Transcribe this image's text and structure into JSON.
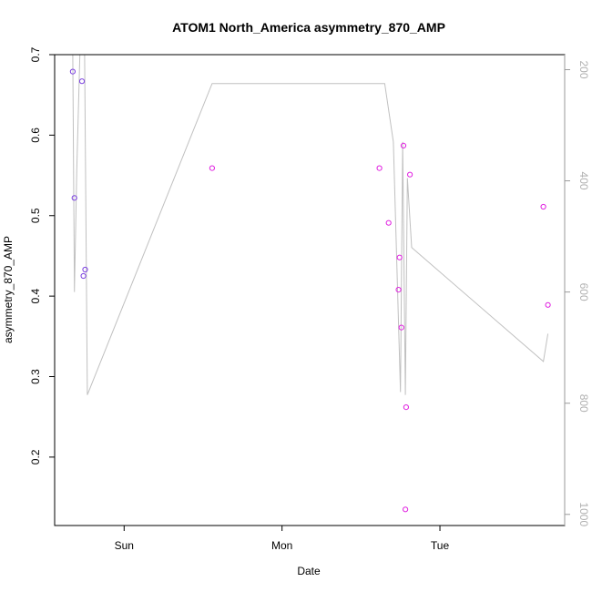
{
  "chart_data": {
    "type": "scatter",
    "title": "ATOM1 North_America asymmetry_870_AMP",
    "xlabel": "Date",
    "ylabel": "asymmetry_870_AMP",
    "x_unit": "days (0 = Sun 00:00)",
    "xlim": [
      -0.44,
      2.79
    ],
    "ylim": [
      0.115,
      0.7
    ],
    "x_ticks": [
      {
        "value": 0,
        "label": "Sun"
      },
      {
        "value": 1,
        "label": "Mon"
      },
      {
        "value": 2,
        "label": "Tue"
      }
    ],
    "y_ticks": [
      0.2,
      0.3,
      0.4,
      0.5,
      0.6,
      0.7
    ],
    "y2_ticks": [
      200,
      400,
      600,
      800,
      1000
    ],
    "y2lim": [
      1020,
      173
    ],
    "grid": false,
    "series": [
      {
        "values": [
          {
            "x": -0.325,
            "y": 0.679,
            "color": "#7b3fe0"
          },
          {
            "x": -0.315,
            "y": 0.522,
            "color": "#7b3fe0"
          },
          {
            "x": -0.267,
            "y": 0.667,
            "color": "#7b3fe0"
          },
          {
            "x": -0.258,
            "y": 0.425,
            "color": "#7b3fe0"
          },
          {
            "x": -0.247,
            "y": 0.433,
            "color": "#7b3fe0"
          },
          {
            "x": 0.557,
            "y": 0.559,
            "color": "#e020e0"
          },
          {
            "x": 1.617,
            "y": 0.559,
            "color": "#e020e0"
          },
          {
            "x": 1.675,
            "y": 0.491,
            "color": "#e020e0"
          },
          {
            "x": 1.738,
            "y": 0.408,
            "color": "#e020e0"
          },
          {
            "x": 1.744,
            "y": 0.448,
            "color": "#e020e0"
          },
          {
            "x": 1.756,
            "y": 0.361,
            "color": "#e020e0"
          },
          {
            "x": 1.769,
            "y": 0.587,
            "color": "#e020e0"
          },
          {
            "x": 1.781,
            "y": 0.135,
            "color": "#e020e0"
          },
          {
            "x": 1.786,
            "y": 0.262,
            "color": "#e020e0"
          },
          {
            "x": 1.81,
            "y": 0.551,
            "color": "#e020e0"
          },
          {
            "x": 2.655,
            "y": 0.511,
            "color": "#e020e0"
          },
          {
            "x": 2.684,
            "y": 0.389,
            "color": "#e020e0"
          }
        ]
      },
      {
        "axis": "right",
        "color": "#c0c0c0",
        "values": [
          {
            "x": -0.325,
            "y": 173
          },
          {
            "x": -0.315,
            "y": 600
          },
          {
            "x": -0.3,
            "y": 380
          },
          {
            "x": -0.28,
            "y": 173
          },
          {
            "x": -0.25,
            "y": 173
          },
          {
            "x": -0.233,
            "y": 785
          },
          {
            "x": 0.557,
            "y": 225
          },
          {
            "x": 1.65,
            "y": 225
          },
          {
            "x": 1.705,
            "y": 330
          },
          {
            "x": 1.75,
            "y": 780
          },
          {
            "x": 1.764,
            "y": 330
          },
          {
            "x": 1.781,
            "y": 785
          },
          {
            "x": 1.794,
            "y": 395
          },
          {
            "x": 1.821,
            "y": 520
          },
          {
            "x": 2.655,
            "y": 725
          },
          {
            "x": 2.684,
            "y": 675
          }
        ]
      }
    ]
  }
}
